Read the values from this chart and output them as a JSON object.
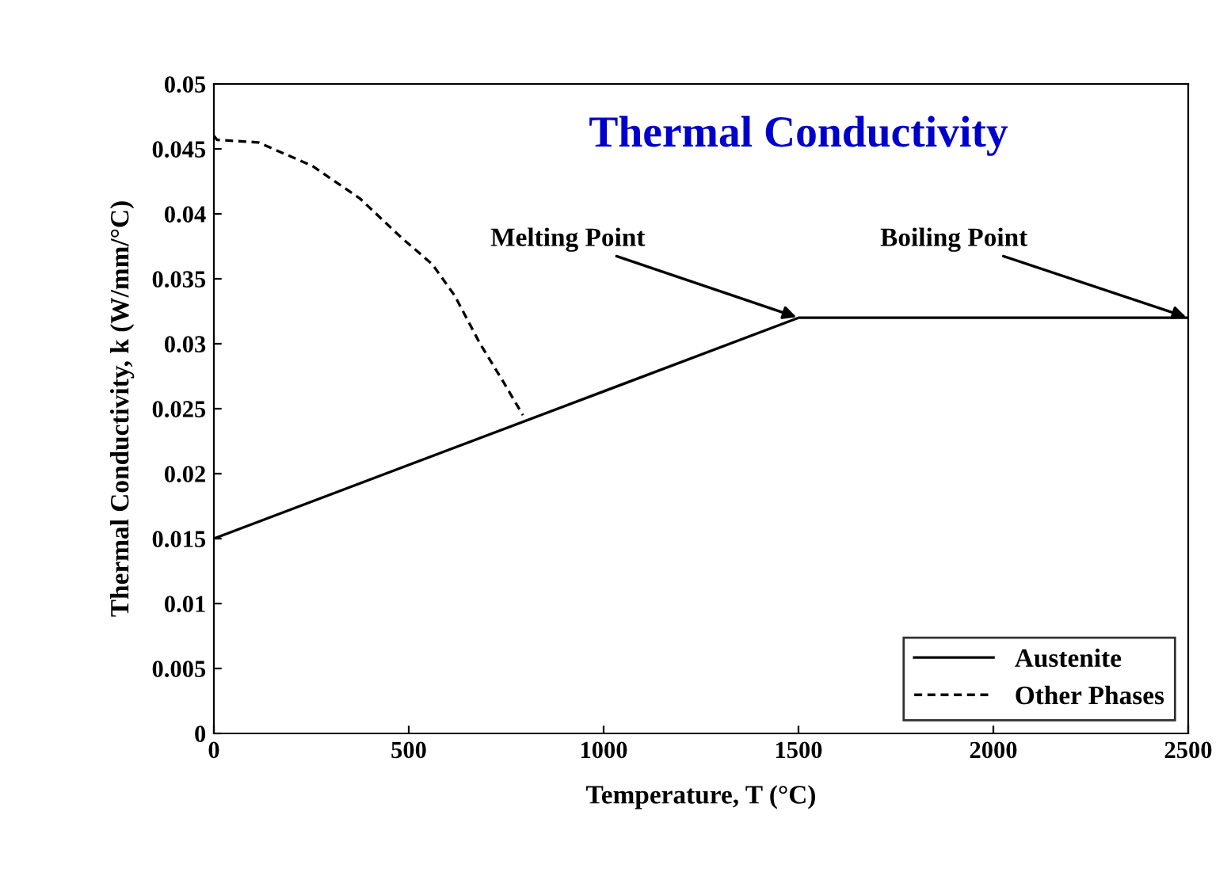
{
  "chart_data": {
    "type": "line",
    "title": "Thermal Conductivity",
    "xlabel": "Temperature, T (°C)",
    "ylabel": "Thermal Conductivity, k (W/mm/°C)",
    "series": [
      {
        "name": "Austenite",
        "color": "#000000",
        "line_style": "solid",
        "x": [
          0,
          1500,
          2500
        ],
        "values": [
          0.015,
          0.032,
          0.032
        ]
      },
      {
        "name": "Other Phases",
        "color": "#000000",
        "line_style": "dashed",
        "x": [
          0,
          8,
          114,
          252,
          374,
          480,
          561,
          618,
          683,
          740,
          793
        ],
        "values": [
          0.046,
          0.0457,
          0.0455,
          0.0437,
          0.0412,
          0.0382,
          0.0361,
          0.0337,
          0.03,
          0.0272,
          0.0245
        ]
      }
    ],
    "annotations": [
      {
        "text": "Melting Point",
        "x": 1500,
        "y": 0.032
      },
      {
        "text": "Boiling Point",
        "x": 2500,
        "y": 0.032
      }
    ],
    "xlim": [
      0,
      2500
    ],
    "xticks": [
      0,
      500,
      1000,
      1500,
      2000,
      2500
    ],
    "ylim": [
      0,
      0.05
    ],
    "yticks": [
      0,
      0.005,
      0.01,
      0.015,
      0.02,
      0.025,
      0.03,
      0.035,
      0.04,
      0.045,
      0.05
    ],
    "grid": false,
    "legend": "bottom right",
    "marker": "none"
  }
}
